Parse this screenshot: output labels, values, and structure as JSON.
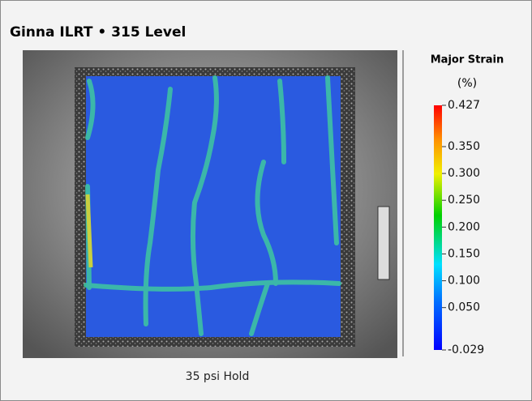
{
  "header": {
    "title": "Ginna ILRT  •  315 Level"
  },
  "image": {
    "caption": "35 psi Hold"
  },
  "colorbar": {
    "title": "Major Strain",
    "unit": "(%)",
    "range": [
      -0.029,
      0.427
    ],
    "ticks": [
      0.427,
      {
        "value": 0.35,
        "label": "0.350"
      },
      {
        "value": 0.3,
        "label": "0.300"
      },
      {
        "value": 0.25,
        "label": "0.250"
      },
      {
        "value": 0.2,
        "label": "0.200"
      },
      {
        "value": 0.15,
        "label": "0.150"
      },
      {
        "value": 0.1,
        "label": "0.100"
      },
      {
        "value": 0.05,
        "label": "0.050"
      },
      -0.029
    ]
  }
}
